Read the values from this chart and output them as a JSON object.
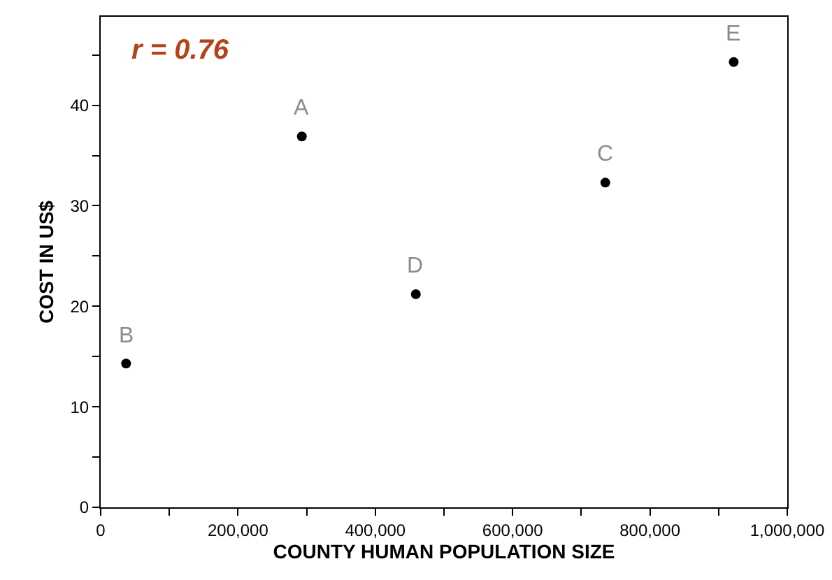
{
  "chart_data": {
    "type": "scatter",
    "xlabel": "COUNTY HUMAN POPULATION SIZE",
    "ylabel": "COST IN US$",
    "x": [
      293000,
      37000,
      735000,
      459000,
      922000
    ],
    "series": [
      {
        "color": "#000000",
        "values": [
          36.9,
          14.3,
          32.3,
          21.2,
          44.3
        ]
      }
    ],
    "xlim": [
      0,
      1000000
    ],
    "ylim": [
      0,
      48.8
    ],
    "xticks": [
      0,
      {
        "value": 100000,
        "label": null
      },
      {
        "value": 200000,
        "label": "200,000"
      },
      {
        "value": 300000,
        "label": null
      },
      {
        "value": 400000,
        "label": "400,000"
      },
      {
        "value": 500000,
        "label": null
      },
      {
        "value": 600000,
        "label": "600,000"
      },
      {
        "value": 700000,
        "label": null
      },
      {
        "value": 800000,
        "label": "800,000"
      },
      {
        "value": 900000,
        "label": null
      },
      {
        "value": 1000000,
        "label": "1,000,000"
      }
    ],
    "yticks": [
      0,
      {
        "value": 5,
        "label": null
      },
      10,
      {
        "value": 15,
        "label": null
      },
      20,
      {
        "value": 25,
        "label": null
      },
      30,
      {
        "value": 35,
        "label": null
      },
      40,
      {
        "value": 45,
        "label": null
      }
    ],
    "annotations": [
      "r = 0.76",
      {
        "text": "A",
        "x": 293000,
        "y": 36.9
      },
      {
        "text": "B",
        "x": 37000,
        "y": 14.3
      },
      {
        "text": "C",
        "x": 735000,
        "y": 32.3
      },
      {
        "text": "D",
        "x": 459000,
        "y": 21.2
      },
      {
        "text": "E",
        "x": 922000,
        "y": 44.3
      }
    ],
    "grid": false,
    "marker": "circle"
  }
}
